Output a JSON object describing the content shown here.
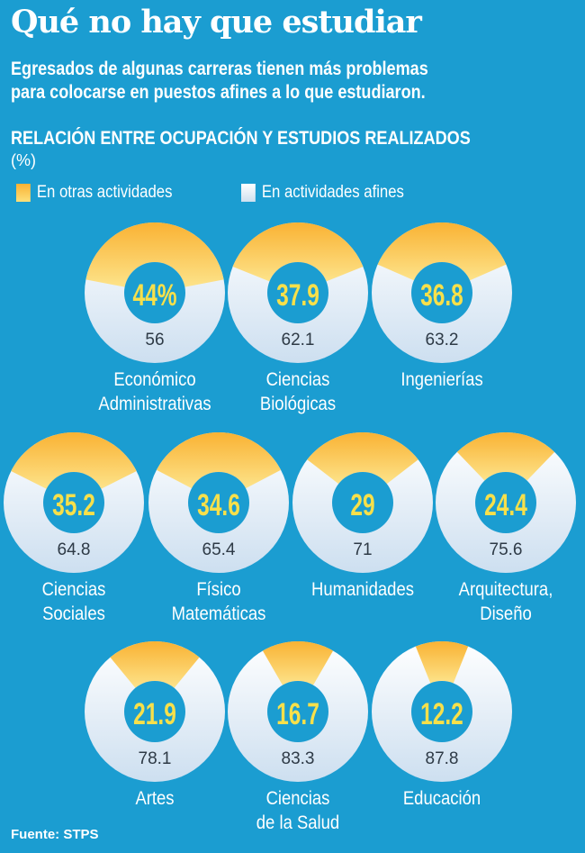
{
  "title": "Qué no hay que estudiar",
  "subtitle_line1": "Egresados de algunas carreras tienen más problemas",
  "subtitle_line2": "para colocarse en puestos afines a lo que estudiaron.",
  "source": "Fuente: STPS",
  "colors": {
    "background": "#1b9dd1",
    "otras": "#f9b233",
    "afines": "#eef4fa",
    "value_yellow": "#f7e04a",
    "value_dark": "#2e3a46"
  },
  "chart_data": {
    "type": "pie",
    "title": "RELACIÓN ENTRE OCUPACIÓN Y ESTUDIOS REALIZADOS",
    "unit": "(%)",
    "legend": [
      "En otras actividades",
      "En actividades afines"
    ],
    "legend_placement": "top-left",
    "items": [
      {
        "label": [
          "Económico",
          "Administrativas"
        ],
        "otras": 44,
        "otras_label": "44%",
        "afines": 56,
        "afines_label": "56"
      },
      {
        "label": [
          "Ciencias",
          "Biológicas"
        ],
        "otras": 37.9,
        "otras_label": "37.9",
        "afines": 62.1,
        "afines_label": "62.1"
      },
      {
        "label": [
          "Ingenierías"
        ],
        "otras": 36.8,
        "otras_label": "36.8",
        "afines": 63.2,
        "afines_label": "63.2"
      },
      {
        "label": [
          "Ciencias",
          "Sociales"
        ],
        "otras": 35.2,
        "otras_label": "35.2",
        "afines": 64.8,
        "afines_label": "64.8"
      },
      {
        "label": [
          "Físico",
          "Matemáticas"
        ],
        "otras": 34.6,
        "otras_label": "34.6",
        "afines": 65.4,
        "afines_label": "65.4"
      },
      {
        "label": [
          "Humanidades"
        ],
        "otras": 29,
        "otras_label": "29",
        "afines": 71,
        "afines_label": "71"
      },
      {
        "label": [
          "Arquitectura,",
          "Diseño"
        ],
        "otras": 24.4,
        "otras_label": "24.4",
        "afines": 75.6,
        "afines_label": "75.6"
      },
      {
        "label": [
          "Artes"
        ],
        "otras": 21.9,
        "otras_label": "21.9",
        "afines": 78.1,
        "afines_label": "78.1"
      },
      {
        "label": [
          "Ciencias",
          "de la Salud"
        ],
        "otras": 16.7,
        "otras_label": "16.7",
        "afines": 83.3,
        "afines_label": "83.3"
      },
      {
        "label": [
          "Educación"
        ],
        "otras": 12.2,
        "otras_label": "12.2",
        "afines": 87.8,
        "afines_label": "87.8"
      }
    ]
  }
}
